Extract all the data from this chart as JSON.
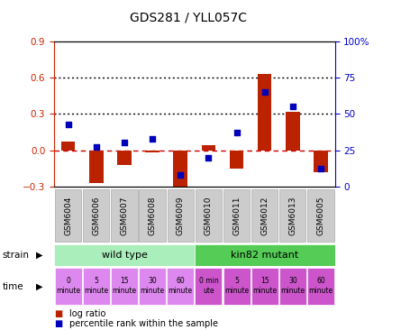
{
  "title": "GDS281 / YLL057C",
  "samples": [
    "GSM6004",
    "GSM6006",
    "GSM6007",
    "GSM6008",
    "GSM6009",
    "GSM6010",
    "GSM6011",
    "GSM6012",
    "GSM6013",
    "GSM6005"
  ],
  "log_ratio": [
    0.07,
    -0.27,
    -0.12,
    -0.02,
    -0.37,
    0.04,
    -0.15,
    0.63,
    0.32,
    -0.18
  ],
  "percentile_rank": [
    43,
    27,
    30,
    33,
    8,
    20,
    37,
    65,
    55,
    12
  ],
  "ylim_left": [
    -0.3,
    0.9
  ],
  "ylim_right": [
    0,
    100
  ],
  "yticks_left": [
    -0.3,
    0.0,
    0.3,
    0.6,
    0.9
  ],
  "yticks_right": [
    0,
    25,
    50,
    75,
    100
  ],
  "hlines": [
    0.0,
    0.3,
    0.6
  ],
  "hline_styles": [
    "dashed",
    "dotted",
    "dotted"
  ],
  "hline_colors": [
    "#cc0000",
    "#000000",
    "#000000"
  ],
  "bar_color": "#bb2200",
  "dot_color": "#0000bb",
  "background_color": "#ffffff",
  "plot_bg_color": "#ffffff",
  "xlabel_bg_color": "#cccccc",
  "xlabel_border_color": "#aaaaaa",
  "strain_wt_color": "#aaeebb",
  "strain_mut_color": "#55cc55",
  "time_wt_color": "#dd88ee",
  "time_mut_color": "#cc55cc",
  "strain_label": "strain",
  "time_label": "time",
  "wt_label": "wild type",
  "mut_label": "kin82 mutant",
  "time_labels_wt": [
    "0\nminute",
    "5\nminute",
    "15\nminute",
    "30\nminute",
    "60\nminute"
  ],
  "time_labels_mut": [
    "0 min\nute",
    "5\nminute",
    "15\nminute",
    "30\nminute",
    "60\nminute"
  ],
  "legend_log_ratio": "log ratio",
  "legend_percentile": "percentile rank within the sample",
  "tick_color_left": "#cc2200",
  "tick_color_right": "#0000cc",
  "num_wt": 5,
  "num_mut": 5
}
